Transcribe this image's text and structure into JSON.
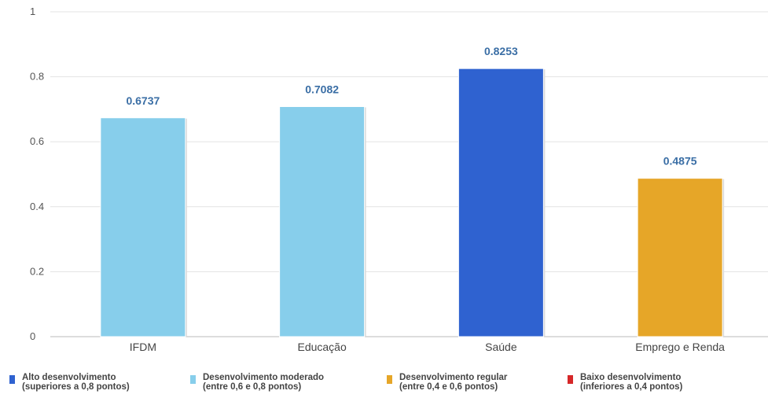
{
  "chart_data": {
    "type": "bar",
    "title": "",
    "xlabel": "",
    "ylabel": "",
    "ylim": [
      0,
      1
    ],
    "yticks": [
      0,
      0.2,
      0.4,
      0.6,
      0.8,
      1
    ],
    "ytick_labels": [
      "0",
      "0.2",
      "0.4",
      "0.6",
      "0.8",
      "1"
    ],
    "grid": true,
    "categories": [
      "IFDM",
      "Educação",
      "Saúde",
      "Emprego e Renda"
    ],
    "values": [
      0.6737,
      0.7082,
      0.8253,
      0.4875
    ],
    "value_labels": [
      "0.6737",
      "0.7082",
      "0.8253",
      "0.4875"
    ],
    "bar_colors": [
      "#87ceeb",
      "#87ceeb",
      "#2f62d0",
      "#e6a628"
    ],
    "legend_position": "bottom",
    "legend": [
      {
        "color": "#2f62d0",
        "line1": "Alto desenvolvimento",
        "line2": "(superiores a 0,8 pontos)"
      },
      {
        "color": "#87ceeb",
        "line1": "Desenvolvimento moderado",
        "line2": "(entre 0,6 e 0,8 pontos)"
      },
      {
        "color": "#e6a628",
        "line1": "Desenvolvimento regular",
        "line2": "(entre 0,4 e 0,6 pontos)"
      },
      {
        "color": "#d62728",
        "line1": "Baixo desenvolvimento",
        "line2": "(inferiores a 0,4 pontos)"
      }
    ]
  }
}
